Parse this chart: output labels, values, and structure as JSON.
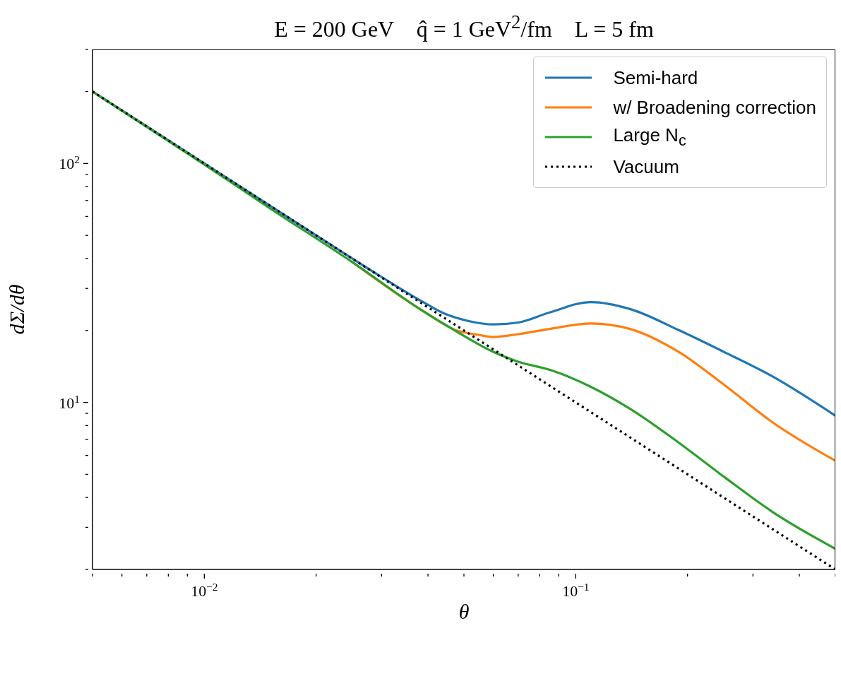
{
  "chart_data": {
    "type": "line",
    "title": "E = 200 GeV    q̂ = 1 GeV$^{2}$/fm    L = 5 fm",
    "xlabel": "θ",
    "ylabel": "dΣ/dθ",
    "log": "xy",
    "marker": "none",
    "legend": "top right",
    "xlim": [
      0.005,
      0.5
    ],
    "ylim": [
      2,
      300
    ],
    "xticks": [
      {
        "value": 0.005,
        "label": null
      },
      {
        "value": 0.006,
        "label": null
      },
      {
        "value": 0.007,
        "label": null
      },
      {
        "value": 0.008,
        "label": null
      },
      {
        "value": 0.009,
        "label": null
      },
      {
        "value": 0.01,
        "label": "10$^{−2}$"
      },
      {
        "value": 0.02,
        "label": null
      },
      {
        "value": 0.03,
        "label": null
      },
      {
        "value": 0.04,
        "label": null
      },
      {
        "value": 0.05,
        "label": null
      },
      {
        "value": 0.06,
        "label": null
      },
      {
        "value": 0.07,
        "label": null
      },
      {
        "value": 0.08,
        "label": null
      },
      {
        "value": 0.09,
        "label": null
      },
      {
        "value": 0.1,
        "label": "10$^{−1}$"
      },
      {
        "value": 0.2,
        "label": null
      },
      {
        "value": 0.3,
        "label": null
      },
      {
        "value": 0.4,
        "label": null
      },
      {
        "value": 0.5,
        "label": null
      }
    ],
    "yticks": [
      {
        "value": 2,
        "label": null
      },
      {
        "value": 3,
        "label": null
      },
      {
        "value": 4,
        "label": null
      },
      {
        "value": 5,
        "label": null
      },
      {
        "value": 6,
        "label": null
      },
      {
        "value": 7,
        "label": null
      },
      {
        "value": 8,
        "label": null
      },
      {
        "value": 9,
        "label": null
      },
      {
        "value": 10,
        "label": "10$^{1}$"
      },
      {
        "value": 20,
        "label": null
      },
      {
        "value": 30,
        "label": null
      },
      {
        "value": 40,
        "label": null
      },
      {
        "value": 50,
        "label": null
      },
      {
        "value": 60,
        "label": null
      },
      {
        "value": 70,
        "label": null
      },
      {
        "value": 80,
        "label": null
      },
      {
        "value": 90,
        "label": null
      },
      {
        "value": 100,
        "label": "10$^{2}$"
      },
      {
        "value": 200,
        "label": null
      },
      {
        "value": 300,
        "label": null
      }
    ],
    "series": [
      {
        "name": "Semi-hard",
        "color": "#1f77b4",
        "x": [
          0.005,
          0.01,
          0.02,
          0.03,
          0.0385,
          0.0444,
          0.0515,
          0.06,
          0.07,
          0.085,
          0.11,
          0.14,
          0.189,
          0.25,
          0.337,
          0.5
        ],
        "values": [
          200,
          100,
          50,
          33.5,
          26.5,
          23.5,
          21.9,
          21.2,
          21.6,
          23.8,
          26.3,
          24.6,
          20.1,
          16.3,
          12.9,
          8.8
        ]
      },
      {
        "name": "w/ Broadening correction",
        "color": "#ff7f0e",
        "x": [
          0.025,
          0.0385,
          0.0478,
          0.0545,
          0.06,
          0.07,
          0.085,
          0.11,
          0.14,
          0.189,
          0.25,
          0.337,
          0.5
        ],
        "values": [
          38.7,
          24.3,
          20,
          19.2,
          18.8,
          19.3,
          20.3,
          21.4,
          20.3,
          16.3,
          11.9,
          8.3,
          5.7
        ]
      },
      {
        "name": "Large N$_{c}$",
        "color": "#2ca02c",
        "x": [
          0.005,
          0.01,
          0.015,
          0.025,
          0.0385,
          0.0478,
          0.0594,
          0.07,
          0.085,
          0.11,
          0.14,
          0.189,
          0.25,
          0.337,
          0.5
        ],
        "values": [
          200,
          99,
          65,
          38.7,
          24.3,
          19.8,
          16.4,
          14.8,
          13.7,
          11.6,
          9.4,
          6.8,
          4.9,
          3.5,
          2.44
        ]
      },
      {
        "name": "Vacuum",
        "color": "#000000",
        "line_style": "dotted",
        "x": [
          0.005,
          0.01,
          0.05,
          0.1,
          0.5
        ],
        "values": [
          200,
          100,
          20,
          10,
          2
        ]
      }
    ]
  }
}
